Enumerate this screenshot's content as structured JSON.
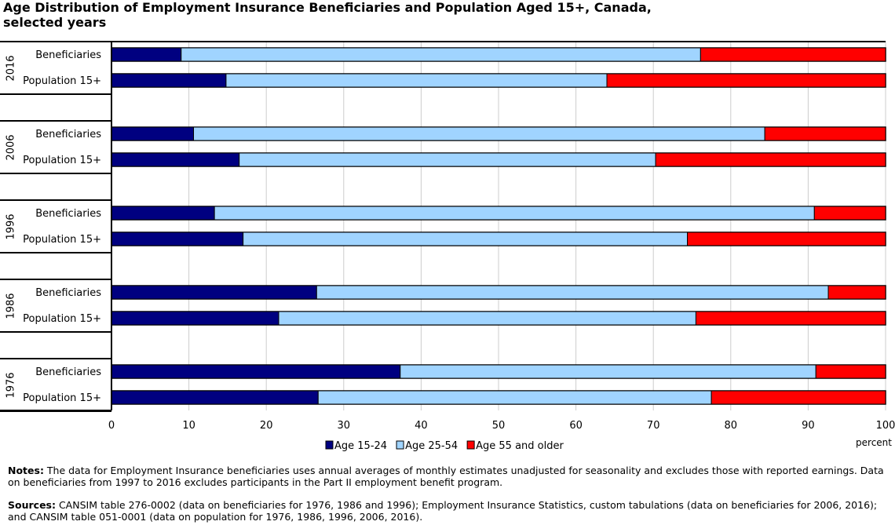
{
  "chart_data": {
    "type": "bar",
    "orientation": "horizontal",
    "stacked": true,
    "title": "Age Distribution of Employment Insurance Beneficiaries and Population Aged 15+, Canada, selected years",
    "xlabel": "percent",
    "xlim": [
      0,
      100
    ],
    "xticks": [
      "0",
      "10",
      "20",
      "30",
      "40",
      "50",
      "60",
      "70",
      "80",
      "90",
      "100"
    ],
    "grid": true,
    "legend_placement": "bottom",
    "series": [
      {
        "name": "Age 15-24",
        "color": "#000080"
      },
      {
        "name": "Age 25-54",
        "color": "#a0d4ff"
      },
      {
        "name": "Age 55 and older",
        "color": "#ff0000"
      }
    ],
    "groups": [
      {
        "year": "2016",
        "bars": [
          {
            "label": "Beneficiaries",
            "values": [
              9.0,
              67.1,
              23.9
            ]
          },
          {
            "label": "Population 15+",
            "values": [
              14.8,
              49.2,
              36.0
            ]
          }
        ]
      },
      {
        "year": "2006",
        "bars": [
          {
            "label": "Beneficiaries",
            "values": [
              10.6,
              73.8,
              15.6
            ]
          },
          {
            "label": "Population 15+",
            "values": [
              16.5,
              53.8,
              29.7
            ]
          }
        ]
      },
      {
        "year": "1996",
        "bars": [
          {
            "label": "Beneficiaries",
            "values": [
              13.3,
              77.5,
              9.2
            ]
          },
          {
            "label": "Population 15+",
            "values": [
              17.0,
              57.4,
              25.6
            ]
          }
        ]
      },
      {
        "year": "1986",
        "bars": [
          {
            "label": "Beneficiaries",
            "values": [
              26.5,
              66.1,
              7.4
            ]
          },
          {
            "label": "Population 15+",
            "values": [
              21.6,
              53.9,
              24.5
            ]
          }
        ]
      },
      {
        "year": "1976",
        "bars": [
          {
            "label": "Beneficiaries",
            "values": [
              37.3,
              53.7,
              9.0
            ]
          },
          {
            "label": "Population 15+",
            "values": [
              26.7,
              50.8,
              22.5
            ]
          }
        ]
      }
    ]
  },
  "notes": {
    "notes_label": "Notes:",
    "notes_text": " The data for Employment Insurance beneficiaries uses annual averages of monthly estimates unadjusted for seasonality and excludes those with reported earnings. Data on beneficiaries from 1997 to 2016 excludes participants in the Part II employment benefit program.",
    "sources_label": "Sources:",
    "sources_text": " CANSIM table 276-0002 (data on beneficiaries for 1976, 1986 and 1996); Employment Insurance Statistics, custom tabulations (data on beneficiaries for 2006, 2016); and CANSIM table 051-0001 (data on population for 1976, 1986, 1996, 2006, 2016)."
  }
}
